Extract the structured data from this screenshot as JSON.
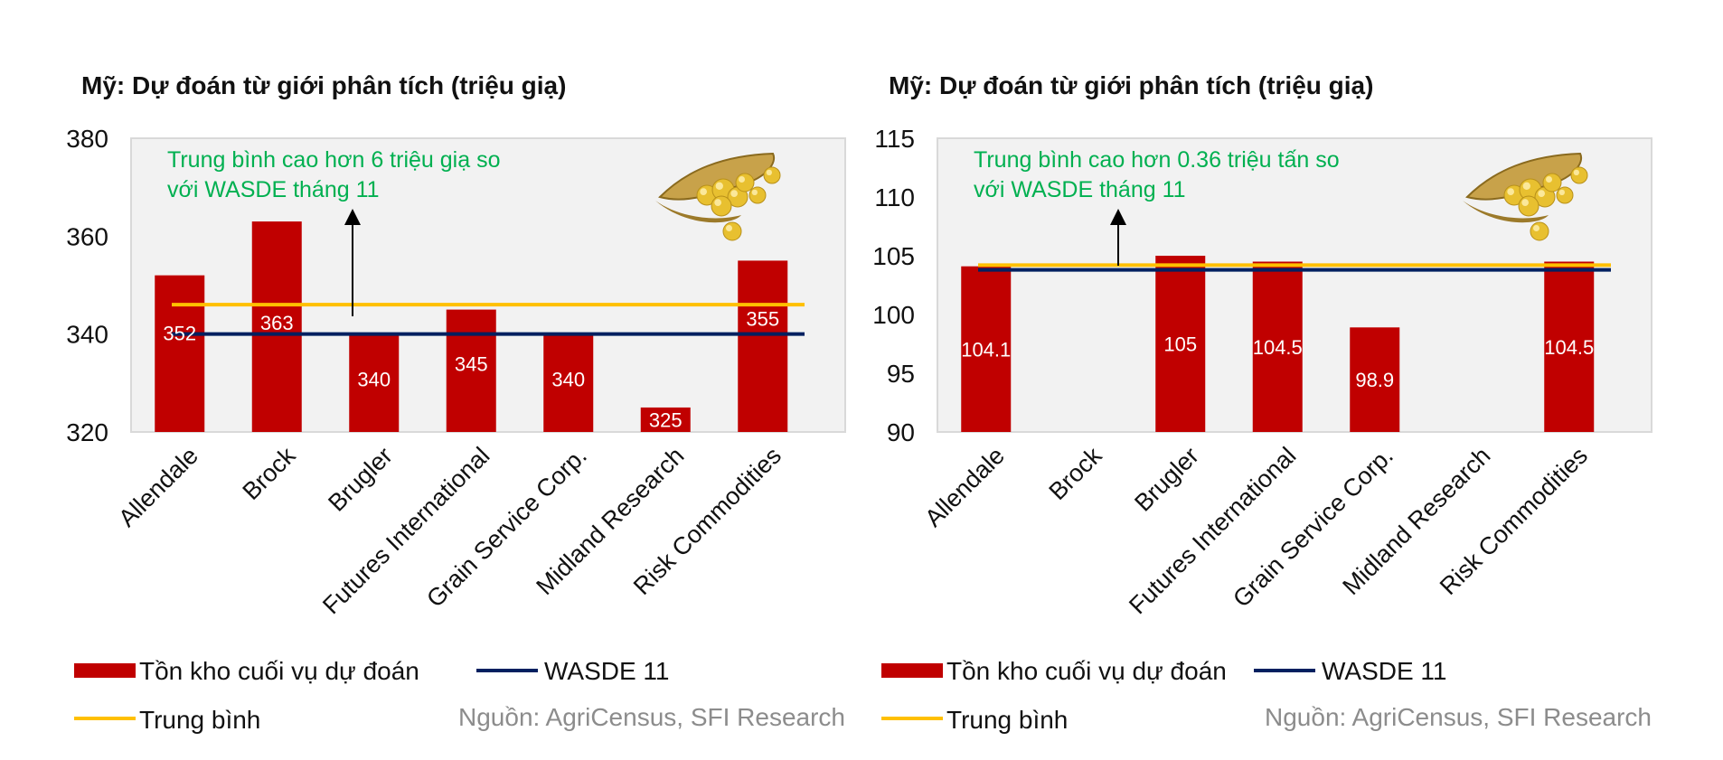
{
  "colors": {
    "bar": "#c00000",
    "wasde": "#002060",
    "average": "#ffc000",
    "annotation": "#00b050",
    "plot_border": "#d9d9d9",
    "plot_bg": "#f2f2f2"
  },
  "icons": {
    "decoration": "soybean-pod-icon"
  },
  "chart_data": [
    {
      "type": "bar",
      "title": "Mỹ: Dự đoán từ giới phân tích (triệu giạ)",
      "categories": [
        "Allendale",
        "Brock",
        "Brugler",
        "Futures International",
        "Grain Service Corp.",
        "Midland Research",
        "Risk Commodities"
      ],
      "series": [
        {
          "name": "Tồn kho cuối vụ dự đoán",
          "values": [
            352,
            363,
            340,
            345,
            340,
            325,
            355
          ]
        }
      ],
      "data_labels": [
        "352",
        "363",
        "340",
        "345",
        "340",
        "325",
        "355"
      ],
      "reference_lines": [
        {
          "name": "WASDE 11",
          "value": 340
        },
        {
          "name": "Trung bình",
          "value": 346
        }
      ],
      "ylim": [
        320,
        380
      ],
      "yticks": [
        "320",
        "340",
        "360",
        "380"
      ],
      "annotation_lines": [
        "Trung bình cao hơn 6 triệu giạ so",
        "với WASDE tháng 11"
      ],
      "source": "Nguồn: AgriCensus, SFI Research",
      "xlabel": "",
      "ylabel": "",
      "grid": false
    },
    {
      "type": "bar",
      "title": "Mỹ: Dự đoán từ giới phân tích (triệu giạ)",
      "categories": [
        "Allendale",
        "Brock",
        "Brugler",
        "Futures International",
        "Grain Service Corp.",
        "Midland Research",
        "Risk Commodities"
      ],
      "series": [
        {
          "name": "Tồn kho cuối vụ dự đoán",
          "values": [
            104.1,
            null,
            105,
            104.5,
            98.9,
            null,
            104.5
          ]
        }
      ],
      "data_labels": [
        "104.1",
        "",
        "105",
        "104.5",
        "98.9",
        "",
        "104.5"
      ],
      "reference_lines": [
        {
          "name": "WASDE 11",
          "value": 103.8
        },
        {
          "name": "Trung bình",
          "value": 104.2
        }
      ],
      "ylim": [
        90,
        115
      ],
      "yticks": [
        "90",
        "95",
        "100",
        "105",
        "110",
        "115"
      ],
      "annotation_lines": [
        "Trung bình cao hơn 0.36 triệu tấn so",
        "với WASDE tháng 11"
      ],
      "source": "Nguồn: AgriCensus, SFI Research",
      "xlabel": "",
      "ylabel": "",
      "grid": false
    }
  ]
}
